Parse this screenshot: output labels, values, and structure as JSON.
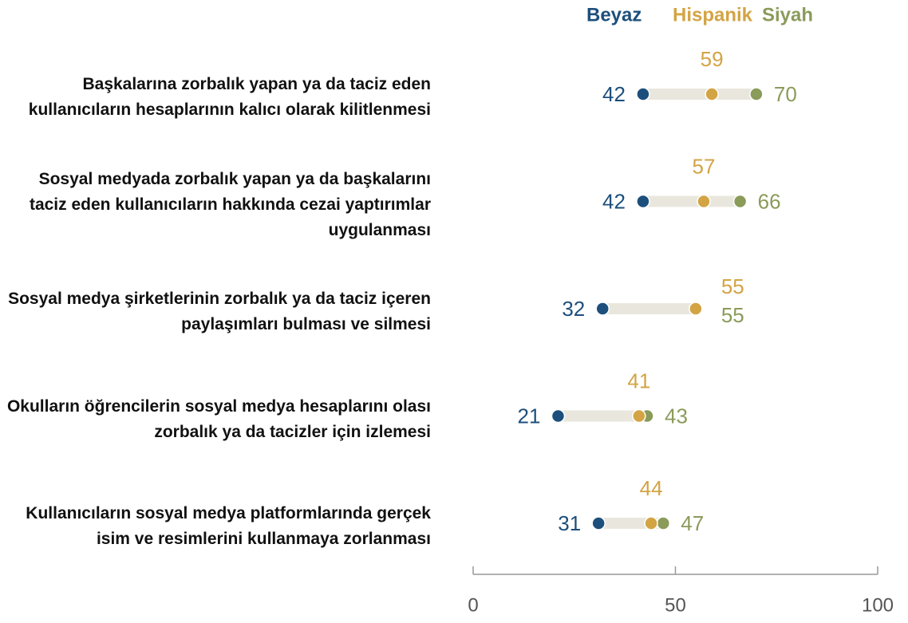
{
  "chart_data": {
    "type": "dot",
    "categories": [
      "Başkalarına zorbalık yapan ya da taciz eden kullanıcıların hesaplarının kalıcı olarak kilitlenmesi",
      "Sosyal medyada zorbalık yapan ya da başkalarını taciz eden kullanıcıların hakkında cezai yaptırımlar uygulanması",
      "Sosyal medya şirketlerinin zorbalık ya da taciz içeren paylaşımları bulması ve silmesi",
      "Okulların öğrencilerin sosyal medya hesaplarını olası zorbalık ya da tacizler için izlemesi",
      "Kullanıcıların sosyal medya platformlarında gerçek isim ve resimlerini kullanmaya zorlanması"
    ],
    "series": [
      {
        "name": "Beyaz",
        "color": "#1d4f7c",
        "values": [
          42,
          42,
          32,
          21,
          31
        ]
      },
      {
        "name": "Hispanik",
        "color": "#d3a444",
        "values": [
          59,
          57,
          55,
          41,
          44
        ]
      },
      {
        "name": "Siyah",
        "color": "#8a9b5a",
        "values": [
          70,
          66,
          55,
          43,
          47
        ]
      }
    ],
    "xlim": [
      0,
      100
    ],
    "xticks": [
      0,
      50,
      100
    ]
  }
}
